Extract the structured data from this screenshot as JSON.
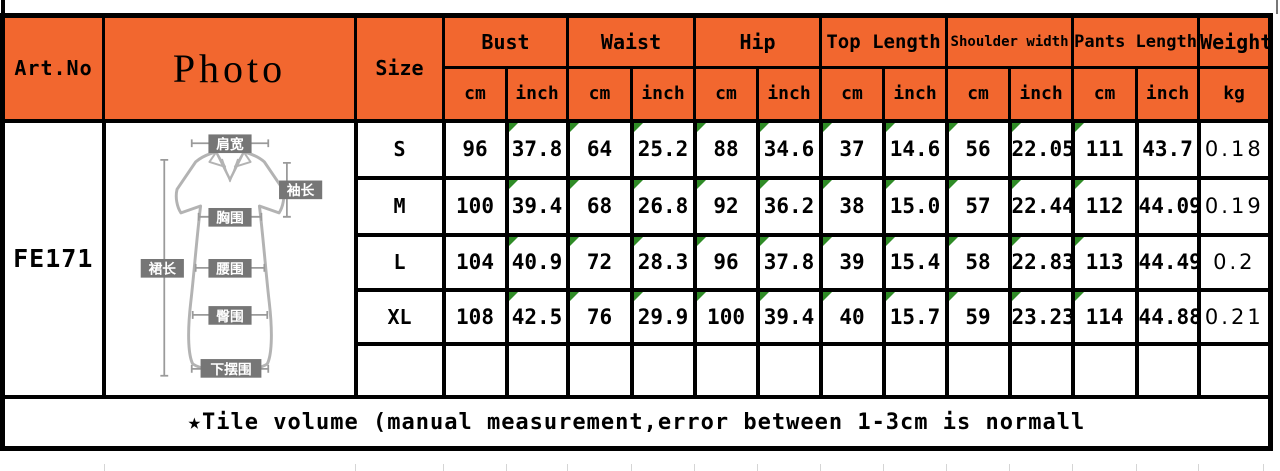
{
  "header": {
    "art_no": "Art.No",
    "photo": "Photo",
    "size": "Size",
    "unit_cm": "cm",
    "unit_inch": "inch",
    "weight_label": "Weight",
    "weight_unit": "kg",
    "groups": [
      {
        "label": "Bust"
      },
      {
        "label": "Waist"
      },
      {
        "label": "Hip"
      },
      {
        "label": "Top Length"
      },
      {
        "label": "Shoulder width"
      },
      {
        "label": "Pants Length"
      }
    ]
  },
  "art_no_value": "FE171",
  "size_chart": {
    "columns": [
      "Bust cm",
      "Bust inch",
      "Waist cm",
      "Waist inch",
      "Hip cm",
      "Hip inch",
      "Top Length cm",
      "Top Length inch",
      "Shoulder width cm",
      "Shoulder width inch",
      "Pants Length cm",
      "Pants Length inch",
      "Weight kg"
    ],
    "rows": [
      {
        "size": "S",
        "values": [
          "96",
          "37.8",
          "64",
          "25.2",
          "88",
          "34.6",
          "37",
          "14.6",
          "56",
          "22.05",
          "111",
          "43.7",
          "0.18"
        ]
      },
      {
        "size": "M",
        "values": [
          "100",
          "39.4",
          "68",
          "26.8",
          "92",
          "36.2",
          "38",
          "15.0",
          "57",
          "22.44",
          "112",
          "44.09",
          "0.19"
        ]
      },
      {
        "size": "L",
        "values": [
          "104",
          "40.9",
          "72",
          "28.3",
          "96",
          "37.8",
          "39",
          "15.4",
          "58",
          "22.83",
          "113",
          "44.49",
          "0.2"
        ]
      },
      {
        "size": "XL",
        "values": [
          "108",
          "42.5",
          "76",
          "29.9",
          "100",
          "39.4",
          "40",
          "15.7",
          "59",
          "23.23",
          "114",
          "44.88",
          "0.21"
        ]
      },
      {
        "size": "",
        "values": [
          "",
          "",
          "",
          "",
          "",
          "",
          "",
          "",
          "",
          "",
          "",
          "",
          ""
        ]
      }
    ]
  },
  "note": "★Tile volume (manual measurement,error between 1-3cm is normall",
  "diagram": {
    "labels": {
      "shoulder_width": "肩宽",
      "sleeve_length": "袖长",
      "bust": "胸围",
      "skirt_length": "裙长",
      "waist": "腰围",
      "hip": "臀围",
      "hem": "下摆围"
    }
  },
  "colors": {
    "header_orange": "#f2672f",
    "comment_marker_green": "#2f8b26",
    "border_black": "#000000"
  }
}
